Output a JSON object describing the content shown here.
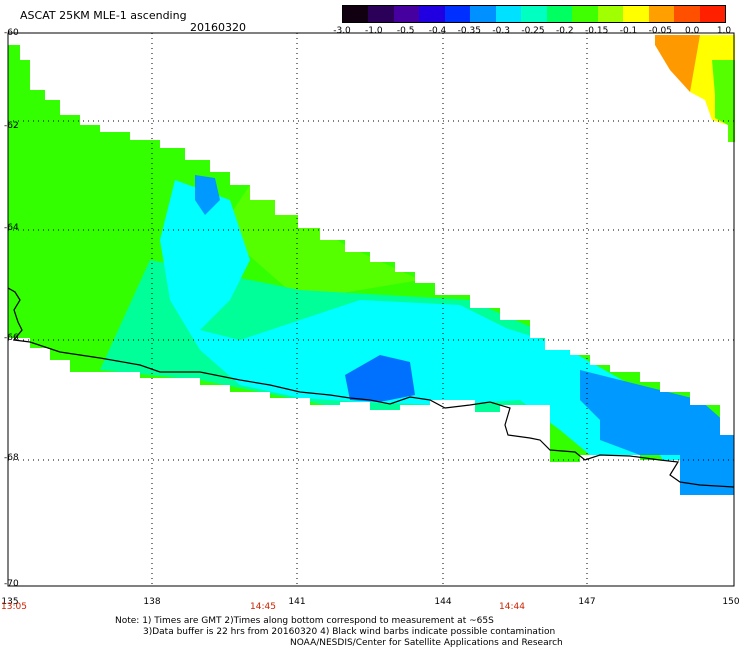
{
  "header": {
    "title": "ASCAT 25KM MLE-1 ascending",
    "date": "20160320"
  },
  "colorbar": {
    "ticks": [
      "-3.0",
      "-1.0",
      "-0.5",
      "-0.4",
      "-0.35",
      "-0.3",
      "-0.25",
      "-0.2",
      "-0.15",
      "-0.1",
      "-0.05",
      "0.0",
      "1.0"
    ],
    "colors": [
      "#100010",
      "#2a0058",
      "#4600a0",
      "#2000e0",
      "#0030ff",
      "#0090ff",
      "#00e0ff",
      "#00ffc0",
      "#00ff60",
      "#40ff00",
      "#a0ff00",
      "#ffff00",
      "#ffa000",
      "#ff5000",
      "#ff2000"
    ]
  },
  "axes": {
    "lat_ticks": [
      "-60",
      "-62",
      "-64",
      "-66",
      "-68",
      "-70"
    ],
    "lon_ticks": [
      "135",
      "138",
      "141",
      "144",
      "147",
      "150"
    ],
    "time_labels": [
      "13:05",
      "14:45",
      "14:44"
    ]
  },
  "notes": {
    "line1": "Note: 1) Times are GMT 2)Times along bottom correspond to measurement at ~65S",
    "line2": "3)Data buffer is 22 hrs from 20160320 4) Black wind barbs indicate possible contamination",
    "line3": "NOAA/NESDIS/Center for Satellite Applications and Research"
  },
  "map_colors": {
    "green": "#33ff00",
    "green2": "#55ff00",
    "aqua": "#00ff99",
    "cyan": "#00ffff",
    "blue": "#0099ff",
    "blue2": "#0070ff",
    "orange": "#ff9900",
    "yellow": "#ffff00",
    "coast": "#000000"
  }
}
